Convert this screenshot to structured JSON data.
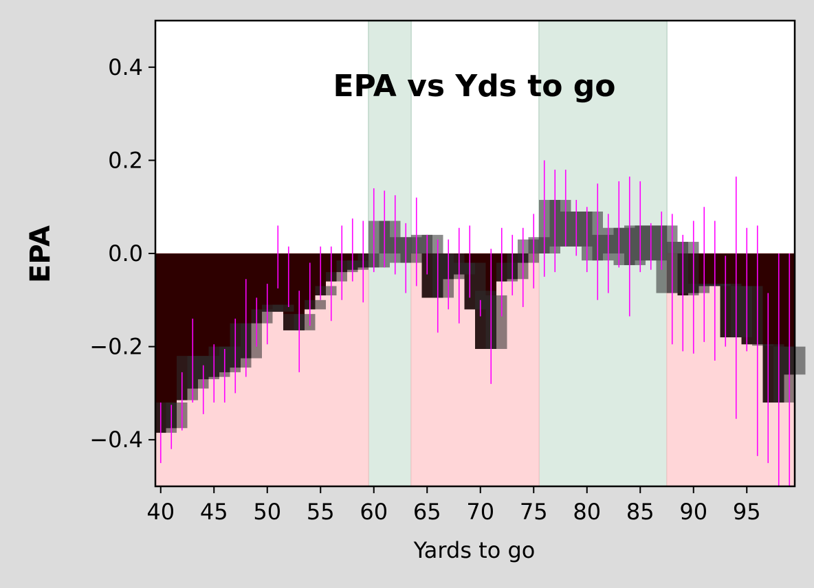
{
  "chart_data": {
    "type": "bar",
    "title": "EPA vs Yds to go",
    "xlabel": "Yards to go",
    "ylabel": "EPA",
    "xlim": [
      39.5,
      99.5
    ],
    "ylim": [
      -0.5,
      0.5
    ],
    "xticks": [
      40,
      45,
      50,
      55,
      60,
      65,
      70,
      75,
      80,
      85,
      90,
      95
    ],
    "yticks": [
      -0.4,
      -0.2,
      0.0,
      0.2,
      0.4
    ],
    "ytick_labels": [
      "−0.4",
      "−0.2",
      "0.0",
      "0.2",
      "0.4"
    ],
    "colors": {
      "positive_band": "#dcebe2",
      "negative_band": "#ffd6d8",
      "negative_fill": "#2e0000",
      "box": "#2e2e2e",
      "errorbar": "#ff00ff"
    },
    "positive_bands": [
      [
        59.5,
        63.5
      ],
      [
        75.5,
        87.5
      ]
    ],
    "negative_bands": [
      [
        39.5,
        59.5
      ],
      [
        63.5,
        75.5
      ],
      [
        87.5,
        99.5
      ]
    ],
    "series": [
      {
        "x": [
          40,
          41,
          42,
          43,
          44,
          45,
          46,
          47,
          48,
          49,
          50,
          51,
          52,
          53,
          54,
          55,
          56,
          57,
          58,
          59,
          60,
          61,
          62,
          63,
          64,
          65,
          66,
          67,
          68,
          69,
          70,
          71,
          72,
          73,
          74,
          75,
          76,
          77,
          78,
          79,
          80,
          81,
          82,
          83,
          84,
          85,
          86,
          87,
          88,
          89,
          90,
          91,
          92,
          93,
          94,
          95,
          96,
          97,
          98,
          99
        ],
        "values": [
          -0.385,
          -0.375,
          -0.315,
          -0.29,
          -0.27,
          -0.265,
          -0.255,
          -0.245,
          -0.225,
          -0.15,
          -0.125,
          -0.125,
          -0.165,
          -0.165,
          -0.12,
          -0.09,
          -0.06,
          -0.04,
          -0.035,
          -0.03,
          0.07,
          0.07,
          0.035,
          0.035,
          0.04,
          -0.095,
          -0.095,
          -0.055,
          -0.045,
          -0.12,
          -0.205,
          -0.205,
          -0.06,
          -0.055,
          -0.02,
          0.015,
          0.115,
          0.095,
          0.09,
          0.09,
          0.04,
          0.04,
          0.055,
          0.055,
          0.06,
          0.06,
          0.06,
          0.035,
          0.025,
          -0.09,
          -0.085,
          -0.07,
          -0.07,
          -0.18,
          -0.18,
          -0.195,
          -0.195,
          -0.32,
          -0.32,
          -0.26
        ],
        "box_low": [
          -0.385,
          -0.375,
          -0.315,
          -0.29,
          -0.27,
          -0.265,
          -0.255,
          -0.245,
          -0.225,
          -0.15,
          -0.125,
          -0.125,
          -0.165,
          -0.165,
          -0.12,
          -0.09,
          -0.06,
          -0.04,
          -0.035,
          -0.03,
          -0.03,
          0.0,
          -0.02,
          -0.02,
          0.0,
          -0.095,
          -0.095,
          -0.055,
          -0.045,
          -0.12,
          -0.205,
          -0.205,
          -0.06,
          -0.055,
          -0.02,
          0.0,
          0.0,
          0.015,
          0.015,
          0.015,
          -0.015,
          -0.015,
          0.0,
          -0.025,
          -0.025,
          -0.015,
          -0.015,
          -0.085,
          -0.085,
          -0.09,
          -0.085,
          -0.07,
          -0.07,
          -0.18,
          -0.18,
          -0.195,
          -0.195,
          -0.32,
          -0.32,
          -0.26
        ],
        "box_high": [
          -0.32,
          -0.32,
          -0.22,
          -0.22,
          -0.22,
          -0.2,
          -0.2,
          -0.15,
          -0.15,
          -0.12,
          -0.11,
          -0.11,
          -0.13,
          -0.13,
          -0.1,
          -0.07,
          -0.04,
          -0.015,
          -0.015,
          0.0,
          0.07,
          0.07,
          0.035,
          0.035,
          0.04,
          0.04,
          0.0,
          0.0,
          -0.02,
          -0.02,
          -0.08,
          -0.09,
          -0.02,
          0.0,
          0.03,
          0.035,
          0.115,
          0.115,
          0.09,
          0.09,
          0.09,
          0.04,
          0.055,
          0.055,
          0.06,
          0.06,
          0.06,
          0.06,
          0.025,
          0.025,
          -0.065,
          -0.065,
          -0.065,
          -0.065,
          -0.07,
          -0.07,
          -0.195,
          -0.195,
          -0.2,
          -0.2
        ],
        "err_low": [
          -0.45,
          -0.42,
          -0.38,
          -0.32,
          -0.345,
          -0.32,
          -0.32,
          -0.3,
          -0.265,
          -0.2,
          -0.195,
          -0.075,
          -0.115,
          -0.255,
          -0.155,
          -0.1,
          -0.145,
          -0.1,
          -0.06,
          -0.105,
          -0.04,
          -0.03,
          -0.045,
          -0.085,
          -0.07,
          -0.045,
          -0.17,
          -0.12,
          -0.15,
          -0.095,
          -0.1,
          -0.28,
          -0.135,
          -0.09,
          -0.115,
          -0.075,
          -0.05,
          -0.04,
          0.015,
          -0.005,
          -0.04,
          -0.1,
          -0.085,
          -0.03,
          -0.135,
          -0.04,
          -0.035,
          -0.035,
          -0.195,
          -0.21,
          -0.215,
          -0.19,
          -0.23,
          -0.2,
          -0.355,
          -0.21,
          -0.435,
          -0.45,
          -0.5,
          -0.5
        ],
        "err_high": [
          -0.32,
          -0.325,
          -0.255,
          -0.14,
          -0.24,
          -0.195,
          -0.205,
          -0.14,
          -0.055,
          -0.095,
          -0.065,
          0.06,
          0.015,
          -0.08,
          -0.02,
          0.015,
          0.015,
          0.06,
          0.075,
          0.07,
          0.14,
          0.135,
          0.125,
          0.065,
          0.12,
          0.04,
          0.03,
          0.03,
          0.055,
          0.06,
          -0.135,
          0.01,
          0.055,
          0.04,
          0.055,
          0.085,
          0.2,
          0.18,
          0.18,
          0.115,
          0.1,
          0.15,
          0.085,
          0.155,
          0.165,
          0.155,
          0.065,
          0.09,
          0.085,
          0.04,
          0.07,
          0.1,
          0.07,
          -0.005,
          0.165,
          0.055,
          0.06,
          -0.085,
          0.0,
          0.0
        ]
      }
    ]
  }
}
